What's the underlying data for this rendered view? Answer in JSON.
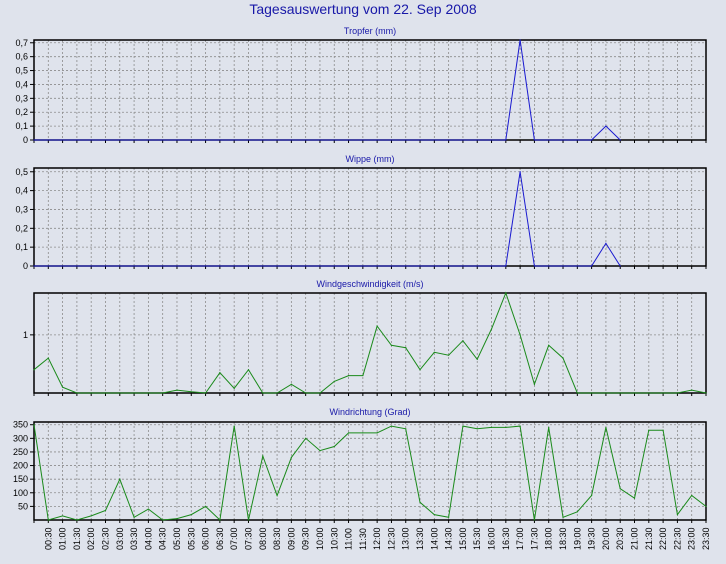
{
  "title": "Tagesauswertung vom 22. Sep 2008",
  "colors": {
    "precip": "#1a1ad0",
    "wind": "#1a8a1a",
    "grid": "#8c8c8c",
    "title": "#1818a8"
  },
  "chart_data": [
    {
      "type": "line",
      "title": "Tropfer (mm)",
      "yticks": [
        0,
        0.1,
        0.2,
        0.3,
        0.4,
        0.5,
        0.6,
        0.7
      ],
      "ytick_labels": [
        "0",
        "0,1",
        "0,2",
        "0,3",
        "0,4",
        "0,5",
        "0,6",
        "0,7"
      ],
      "ylim": [
        0,
        0.72
      ],
      "color": "precip",
      "x": [
        0,
        33,
        34,
        35,
        39,
        40,
        41
      ],
      "values": [
        0,
        0,
        0.72,
        0,
        0,
        0.1,
        0
      ]
    },
    {
      "type": "line",
      "title": "Wippe (mm)",
      "yticks": [
        0,
        0.1,
        0.2,
        0.3,
        0.4,
        0.5
      ],
      "ytick_labels": [
        "0",
        "0,1",
        "0,2",
        "0,3",
        "0,4",
        "0,5"
      ],
      "ylim": [
        0,
        0.52
      ],
      "color": "precip",
      "x": [
        0,
        33,
        34,
        35,
        39,
        40,
        41
      ],
      "values": [
        0,
        0,
        0.5,
        0,
        0,
        0.12,
        0
      ]
    },
    {
      "type": "line",
      "title": "Windgeschwindigkeit (m/s)",
      "yticks": [
        1
      ],
      "ytick_labels": [
        "1"
      ],
      "ylim": [
        0,
        1.72
      ],
      "color": "wind",
      "x": [
        0,
        1,
        2,
        3,
        4,
        5,
        6,
        7,
        8,
        9,
        10,
        11,
        12,
        13,
        14,
        15,
        16,
        17,
        18,
        19,
        20,
        21,
        22,
        23,
        24,
        25,
        26,
        27,
        28,
        29,
        30,
        31,
        32,
        33,
        34,
        35,
        36,
        37,
        38,
        39,
        40,
        41,
        42,
        43,
        44,
        45,
        46,
        47
      ],
      "values": [
        0.4,
        0.6,
        0.1,
        0,
        0,
        0,
        0,
        0,
        0,
        0,
        0.05,
        0.02,
        0,
        0.35,
        0.08,
        0.4,
        0,
        0,
        0.15,
        0,
        0,
        0.2,
        0.3,
        0.3,
        1.15,
        0.82,
        0.78,
        0.4,
        0.7,
        0.65,
        0.9,
        0.58,
        1.1,
        1.72,
        1.0,
        0.15,
        0.82,
        0.6,
        0,
        0,
        0,
        0,
        0,
        0,
        0,
        0,
        0.05,
        0
      ]
    },
    {
      "type": "line",
      "title": "Windrichtung (Grad)",
      "yticks": [
        50,
        100,
        150,
        200,
        250,
        300,
        350
      ],
      "ytick_labels": [
        "50",
        "100",
        "150",
        "200",
        "250",
        "300",
        "350"
      ],
      "ylim": [
        0,
        360
      ],
      "color": "wind",
      "x": [
        0,
        1,
        2,
        3,
        4,
        5,
        6,
        7,
        8,
        9,
        10,
        11,
        12,
        13,
        14,
        15,
        16,
        17,
        18,
        19,
        20,
        21,
        22,
        23,
        24,
        25,
        26,
        27,
        28,
        29,
        30,
        31,
        32,
        33,
        34,
        35,
        36,
        37,
        38,
        39,
        40,
        41,
        42,
        43,
        44,
        45,
        46,
        47
      ],
      "values": [
        350,
        0,
        15,
        0,
        15,
        35,
        150,
        10,
        40,
        0,
        5,
        20,
        50,
        0,
        345,
        0,
        235,
        90,
        230,
        300,
        255,
        270,
        320,
        320,
        320,
        345,
        335,
        65,
        20,
        10,
        345,
        335,
        340,
        340,
        345,
        0,
        340,
        10,
        30,
        90,
        340,
        115,
        80,
        330,
        330,
        20,
        90,
        50
      ]
    }
  ],
  "xticks": [
    "00:30",
    "01:00",
    "01:30",
    "02:00",
    "02:30",
    "03:00",
    "03:30",
    "04:00",
    "04:30",
    "05:00",
    "05:30",
    "06:00",
    "06:30",
    "07:00",
    "07:30",
    "08:00",
    "08:30",
    "09:00",
    "09:30",
    "10:00",
    "10:30",
    "11:00",
    "11:30",
    "12:00",
    "12:30",
    "13:00",
    "13:30",
    "14:00",
    "14:30",
    "15:00",
    "15:30",
    "16:00",
    "16:30",
    "17:00",
    "17:30",
    "18:00",
    "18:30",
    "19:00",
    "19:30",
    "20:00",
    "20:30",
    "21:00",
    "21:30",
    "22:00",
    "22:30",
    "23:00",
    "23:30"
  ]
}
